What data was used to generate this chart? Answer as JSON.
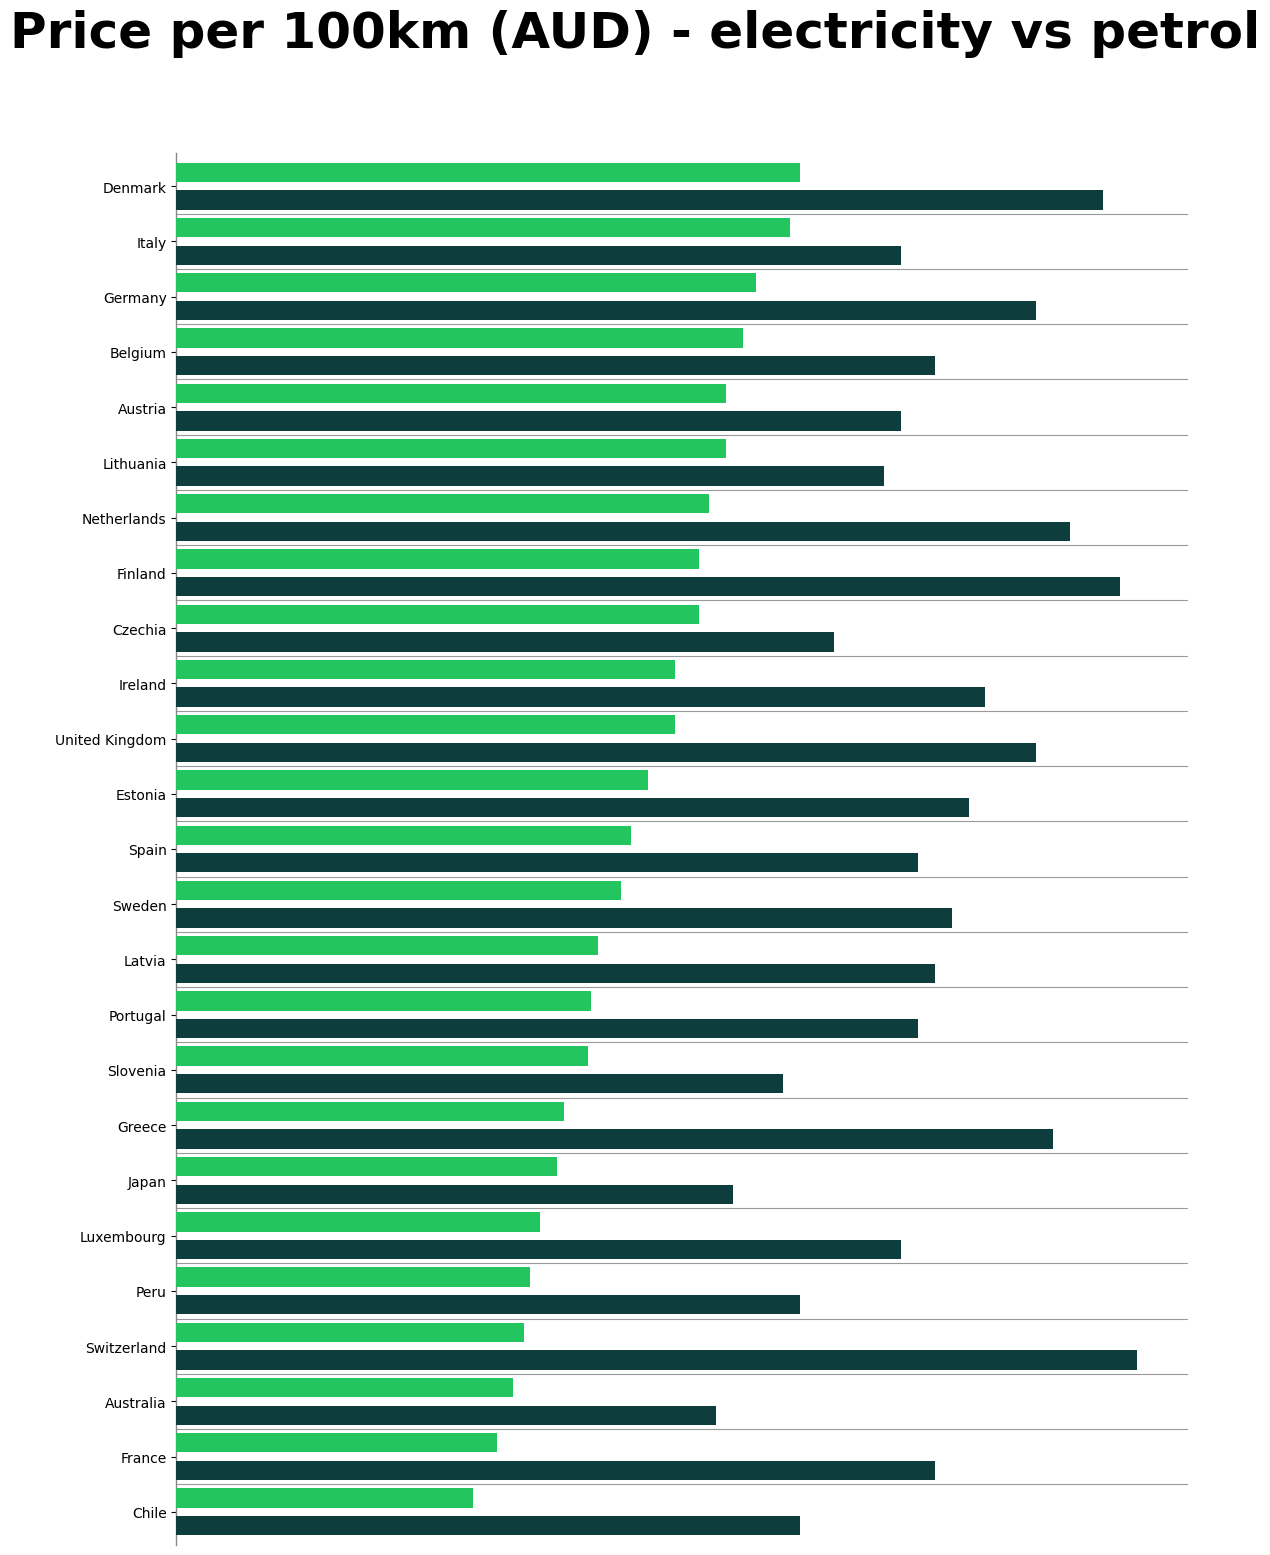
{
  "title": "Price per 100km (AUD) - electricity vs petrol",
  "countries": [
    "Denmark",
    "Italy",
    "Germany",
    "Belgium",
    "Austria",
    "Lithuania",
    "Netherlands",
    "Finland",
    "Czechia",
    "Ireland",
    "United Kingdom",
    "Estonia",
    "Spain",
    "Sweden",
    "Latvia",
    "Portugal",
    "Slovenia",
    "Greece",
    "Japan",
    "Luxembourg",
    "Peru",
    "Switzerland",
    "Australia",
    "France",
    "Chile"
  ],
  "electricity": [
    18.5,
    18.2,
    17.2,
    16.8,
    16.3,
    16.3,
    15.8,
    15.5,
    15.5,
    14.8,
    14.8,
    14.0,
    13.5,
    13.2,
    12.5,
    12.3,
    12.2,
    11.5,
    11.3,
    10.8,
    10.5,
    10.3,
    10.0,
    9.5,
    8.8
  ],
  "petrol": [
    27.5,
    21.5,
    25.5,
    22.5,
    21.5,
    21.0,
    26.5,
    28.0,
    19.5,
    24.0,
    25.5,
    23.5,
    22.0,
    23.0,
    22.5,
    22.0,
    18.0,
    26.0,
    16.5,
    21.5,
    18.5,
    28.5,
    16.0,
    22.5,
    18.5
  ],
  "electricity_color": "#22c55e",
  "petrol_color": "#0d3d3d",
  "separator_color": "#999999",
  "grid_color": "#cccccc",
  "label_color": "#666666",
  "background_color": "#ffffff",
  "title_fontsize": 36,
  "label_fontsize": 14,
  "xlim": [
    0,
    30
  ]
}
